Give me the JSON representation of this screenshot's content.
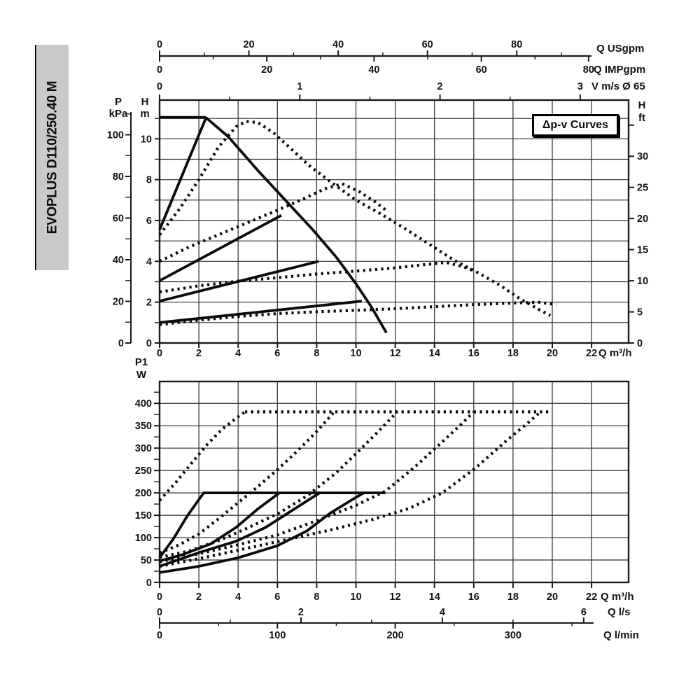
{
  "banner": {
    "text": "EVOPLUS D110/250.40 M"
  },
  "annotation": {
    "label": "Δp-v Curves"
  },
  "colors": {
    "ink": "#1a1a1a",
    "grid": "#2b2b2b",
    "banner_bg": "#c9c9c9"
  },
  "chart_data": [
    {
      "type": "line",
      "title": "Head vs flow curves",
      "axes": {
        "x_bottom": {
          "label": "Q m³/h",
          "ticks": [
            0,
            2,
            4,
            6,
            8,
            10,
            12,
            14,
            16,
            18,
            20,
            22
          ]
        },
        "x_usgpm": {
          "label": "Q USgpm",
          "ticks": [
            0,
            20,
            40,
            60,
            80
          ]
        },
        "x_impgpm": {
          "label": "Q IMPgpm",
          "ticks": [
            0,
            20,
            40,
            60,
            80
          ]
        },
        "x_velocity": {
          "label": "V m/s Ø 65",
          "ticks": [
            0,
            1,
            2,
            3
          ]
        },
        "y_kpa": {
          "label_lines": [
            "P",
            "kPa"
          ],
          "ticks": [
            0,
            20,
            40,
            60,
            80,
            100
          ]
        },
        "y_m": {
          "label_lines": [
            "H",
            "m"
          ],
          "ticks": [
            0,
            2,
            4,
            6,
            8,
            10
          ]
        },
        "y_ft": {
          "label_lines": [
            "H",
            "ft"
          ],
          "ticks": [
            0,
            5,
            10,
            15,
            20,
            25,
            30
          ]
        }
      },
      "xlim": [
        0,
        23.9
      ],
      "ylim_m": [
        0,
        11.9
      ],
      "series": [
        {
          "name": "max-curve-flat",
          "style": "solid",
          "points": [
            [
              0,
              11.05
            ],
            [
              2.35,
              11.05
            ]
          ]
        },
        {
          "name": "max-curve-descent",
          "style": "solid",
          "points": [
            [
              2.35,
              11.05
            ],
            [
              3.5,
              10.1
            ],
            [
              5.0,
              8.45
            ],
            [
              6.4,
              7.0
            ],
            [
              7.8,
              5.55
            ],
            [
              9.0,
              4.2
            ],
            [
              10.0,
              2.9
            ],
            [
              10.8,
              1.75
            ],
            [
              11.55,
              0.5
            ]
          ]
        },
        {
          "name": "dpv-setpoint-line-1",
          "style": "solid",
          "points": [
            [
              0,
              5.55
            ],
            [
              2.35,
              11.0
            ]
          ]
        },
        {
          "name": "dpv-setpoint-line-2",
          "style": "solid",
          "points": [
            [
              0,
              3.05
            ],
            [
              6.2,
              6.25
            ]
          ]
        },
        {
          "name": "dpv-setpoint-line-3",
          "style": "solid",
          "points": [
            [
              0,
              2.05
            ],
            [
              8.1,
              4.0
            ]
          ]
        },
        {
          "name": "dpv-setpoint-line-4",
          "style": "solid",
          "points": [
            [
              0,
              1.0
            ],
            [
              10.3,
              2.05
            ]
          ]
        },
        {
          "name": "dpv-max-curve-1",
          "style": "dotted",
          "points": [
            [
              0,
              5.3
            ],
            [
              1.0,
              6.55
            ],
            [
              2.0,
              8.0
            ],
            [
              3.0,
              9.6
            ],
            [
              3.9,
              10.6
            ],
            [
              4.4,
              10.85
            ],
            [
              5.0,
              10.8
            ],
            [
              5.8,
              10.3
            ],
            [
              6.6,
              9.6
            ],
            [
              7.6,
              8.7
            ],
            [
              8.7,
              7.9
            ],
            [
              10.0,
              7.0
            ],
            [
              11.3,
              6.3
            ],
            [
              12.5,
              5.6
            ],
            [
              13.8,
              4.8
            ],
            [
              15.0,
              4.05
            ],
            [
              16.2,
              3.45
            ],
            [
              17.3,
              2.85
            ],
            [
              18.3,
              2.2
            ],
            [
              19.3,
              1.65
            ],
            [
              19.9,
              1.35
            ]
          ]
        },
        {
          "name": "dpv-max-curve-2",
          "style": "dotted",
          "points": [
            [
              0,
              4.0
            ],
            [
              1.5,
              4.7
            ],
            [
              3.0,
              5.3
            ],
            [
              4.5,
              5.9
            ],
            [
              6.0,
              6.5
            ],
            [
              7.3,
              7.05
            ],
            [
              8.4,
              7.55
            ],
            [
              9.3,
              7.8
            ],
            [
              10.2,
              7.4
            ],
            [
              11.0,
              6.9
            ],
            [
              11.6,
              6.45
            ]
          ]
        },
        {
          "name": "dpv-max-curve-3",
          "style": "dotted",
          "points": [
            [
              0,
              2.5
            ],
            [
              2.0,
              2.8
            ],
            [
              4.0,
              3.03
            ],
            [
              6.0,
              3.2
            ],
            [
              8.0,
              3.38
            ],
            [
              10.0,
              3.52
            ],
            [
              11.8,
              3.66
            ],
            [
              13.3,
              3.82
            ],
            [
              14.6,
              3.95
            ],
            [
              15.5,
              3.72
            ],
            [
              16.1,
              3.5
            ]
          ]
        },
        {
          "name": "dpv-max-curve-4",
          "style": "dotted",
          "points": [
            [
              0,
              0.9
            ],
            [
              2.0,
              1.12
            ],
            [
              4.0,
              1.3
            ],
            [
              6.0,
              1.44
            ],
            [
              8.0,
              1.53
            ],
            [
              10.0,
              1.6
            ],
            [
              12.0,
              1.68
            ],
            [
              14.0,
              1.78
            ],
            [
              16.0,
              1.88
            ],
            [
              17.8,
              1.95
            ],
            [
              19.3,
              2.0
            ],
            [
              20.2,
              1.88
            ]
          ]
        }
      ]
    },
    {
      "type": "line",
      "title": "Power input vs flow",
      "axes": {
        "y_w": {
          "label_lines": [
            "P1",
            "W"
          ],
          "ticks": [
            0,
            50,
            100,
            150,
            200,
            250,
            300,
            350,
            400
          ]
        },
        "x_m3h": {
          "label": "Q m³/h",
          "ticks": [
            0,
            2,
            4,
            6,
            8,
            10,
            12,
            14,
            16,
            18,
            20,
            22
          ]
        },
        "x_ls": {
          "label": "Q l/s",
          "ticks": [
            0,
            2,
            4,
            6
          ]
        },
        "x_lmin": {
          "label": "Q l/min",
          "ticks": [
            0,
            100,
            200,
            300
          ]
        }
      },
      "xlim": [
        0,
        23.9
      ],
      "ylim_w": [
        0,
        450
      ],
      "series": [
        {
          "name": "power-limit-line",
          "style": "solid",
          "points": [
            [
              2.2,
              200
            ],
            [
              11.5,
              200
            ]
          ]
        },
        {
          "name": "power-line-1",
          "style": "solid",
          "points": [
            [
              0,
              55
            ],
            [
              0.7,
              97
            ],
            [
              1.4,
              148
            ],
            [
              2.0,
              185
            ],
            [
              2.25,
              200
            ]
          ]
        },
        {
          "name": "power-line-2",
          "style": "solid",
          "points": [
            [
              0,
              48
            ],
            [
              1.1,
              61
            ],
            [
              2.6,
              86
            ],
            [
              3.9,
              123
            ],
            [
              5.0,
              164
            ],
            [
              6.1,
              200
            ]
          ]
        },
        {
          "name": "power-line-3",
          "style": "solid",
          "points": [
            [
              0,
              36
            ],
            [
              2.1,
              68
            ],
            [
              3.9,
              92
            ],
            [
              5.4,
              123
            ],
            [
              6.9,
              165
            ],
            [
              8.15,
              200
            ]
          ]
        },
        {
          "name": "power-line-4",
          "style": "solid",
          "points": [
            [
              0,
              22
            ],
            [
              2.0,
              36
            ],
            [
              4.0,
              55
            ],
            [
              6.0,
              82
            ],
            [
              7.5,
              115
            ],
            [
              8.7,
              155
            ],
            [
              10.0,
              190
            ],
            [
              10.4,
              200
            ]
          ]
        },
        {
          "name": "power-max-plateau",
          "style": "dotted",
          "points": [
            [
              4.35,
              381
            ],
            [
              19.9,
              381
            ]
          ]
        },
        {
          "name": "power-max-branch-1",
          "style": "dotted",
          "points": [
            [
              0,
              183
            ],
            [
              0.8,
              222
            ],
            [
              1.6,
              265
            ],
            [
              2.4,
              307
            ],
            [
              3.2,
              343
            ],
            [
              4.0,
              370
            ],
            [
              4.35,
              381
            ]
          ]
        },
        {
          "name": "power-max-branch-2",
          "style": "dotted",
          "points": [
            [
              0,
              66
            ],
            [
              1.0,
              84
            ],
            [
              2.0,
              108
            ],
            [
              3.0,
              142
            ],
            [
              4.0,
              178
            ],
            [
              5.0,
              214
            ],
            [
              6.0,
              252
            ],
            [
              7.0,
              293
            ],
            [
              8.0,
              337
            ],
            [
              8.9,
              381
            ]
          ]
        },
        {
          "name": "power-max-branch-3",
          "style": "dotted",
          "points": [
            [
              0,
              56
            ],
            [
              1.5,
              70
            ],
            [
              3.0,
              93
            ],
            [
              4.5,
              122
            ],
            [
              6.0,
              153
            ],
            [
              7.5,
              193
            ],
            [
              9.0,
              245
            ],
            [
              10.2,
              296
            ],
            [
              11.2,
              340
            ],
            [
              12.1,
              381
            ]
          ]
        },
        {
          "name": "power-max-branch-4",
          "style": "dotted",
          "points": [
            [
              0,
              46
            ],
            [
              2.0,
              64
            ],
            [
              4.0,
              84
            ],
            [
              6.0,
              106
            ],
            [
              8.0,
              138
            ],
            [
              10.0,
              172
            ],
            [
              11.5,
              204
            ],
            [
              13.0,
              258
            ],
            [
              14.3,
              310
            ],
            [
              15.4,
              355
            ],
            [
              16.0,
              381
            ]
          ]
        },
        {
          "name": "power-max-branch-5",
          "style": "dotted",
          "points": [
            [
              0,
              36
            ],
            [
              2.0,
              53
            ],
            [
              4.0,
              72
            ],
            [
              6.4,
              95
            ],
            [
              8.6,
              116
            ],
            [
              10.8,
              140
            ],
            [
              12.7,
              165
            ],
            [
              14.4,
              200
            ],
            [
              16.1,
              256
            ],
            [
              17.7,
              318
            ],
            [
              18.8,
              358
            ],
            [
              19.4,
              381
            ]
          ]
        }
      ]
    }
  ]
}
